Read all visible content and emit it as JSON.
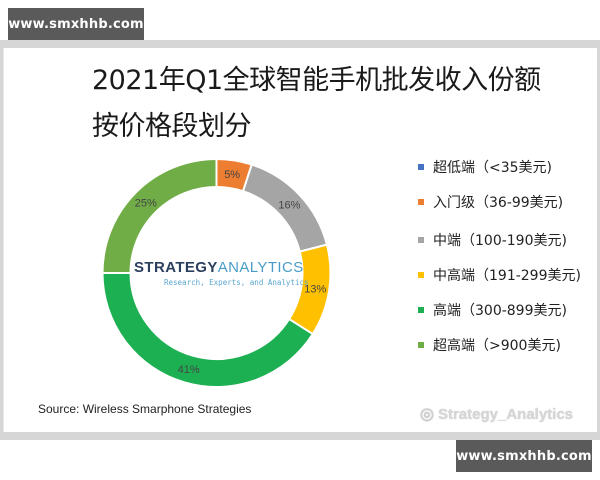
{
  "watermarks": {
    "top": "www.smxhhb.com",
    "bottom": "www.smxhhb.com",
    "weibo": "Strategy_Analytics"
  },
  "title": {
    "line1": "2021年Q1全球智能手机批发收入份额",
    "line2": "按价格段划分"
  },
  "logo": {
    "part1": "STRATEGY",
    "part2": "ANALYTICS",
    "tagline": "Research, Experts, and Analytics"
  },
  "source": "Source: Wireless Smarphone Strategies",
  "legend": [
    {
      "label": "超低端（<35美元)",
      "color": "#4472C4"
    },
    {
      "label": "入门级（36-99美元)",
      "color": "#ED7D31"
    },
    {
      "label": "中端（100-190美元)",
      "color": "#A5A5A5"
    },
    {
      "label": "中高端（191-299美元)",
      "color": "#FFC000"
    },
    {
      "label": "高端（300-899美元)",
      "color": "#1DB053"
    },
    {
      "label": "超高端（>900美元)",
      "color": "#70AD47"
    }
  ],
  "chart_data": {
    "type": "pie",
    "subtype": "donut",
    "title": "2021年Q1全球智能手机批发收入份额 按价格段划分",
    "categories": [
      "超低端（<35美元)",
      "入门级（36-99美元)",
      "中端（100-190美元)",
      "中高端（191-299美元)",
      "高端（300-899美元)",
      "超高端（>900美元)"
    ],
    "values": [
      0,
      5,
      16,
      13,
      41,
      25
    ],
    "labels": [
      "",
      "5%",
      "16%",
      "13%",
      "41%",
      "25%"
    ],
    "colors": [
      "#4472C4",
      "#ED7D31",
      "#A5A5A5",
      "#FFC000",
      "#1DB053",
      "#70AD47"
    ],
    "unit": "%",
    "legend_position": "right",
    "source": "Source: Wireless Smarphone Strategies"
  }
}
